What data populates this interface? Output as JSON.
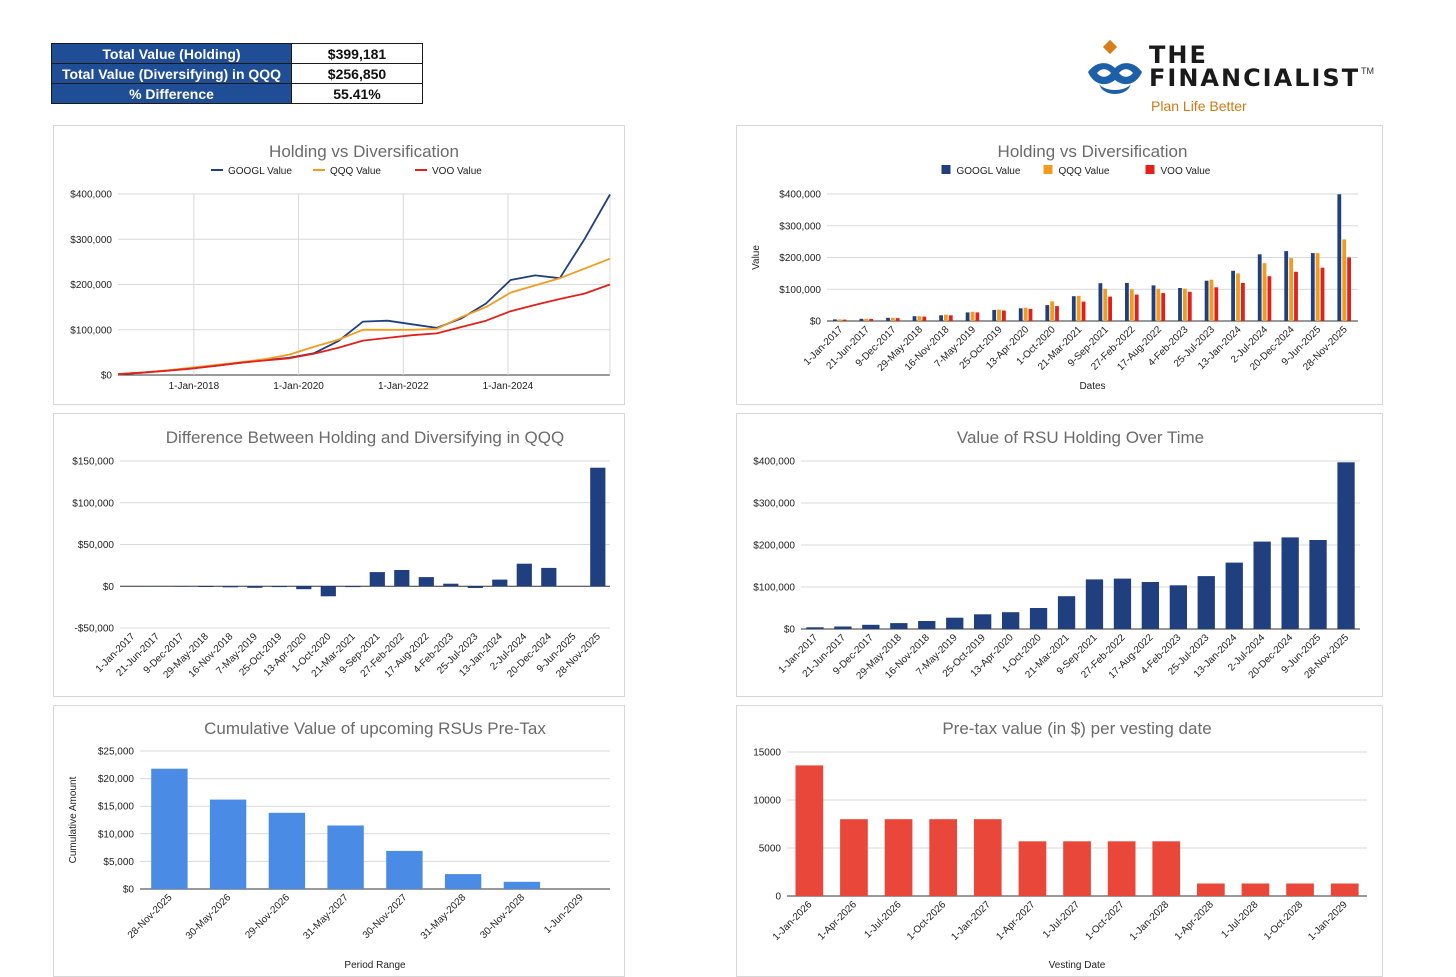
{
  "summary": {
    "rows": [
      {
        "label": "Total Value (Holding)",
        "value": "$399,181"
      },
      {
        "label": "Total Value (Diversifying) in QQQ",
        "value": "$256,850"
      },
      {
        "label": "% Difference",
        "value": "55.41%"
      }
    ]
  },
  "logo": {
    "line1": "THE",
    "line2": "FINANCIALIST",
    "tm": "TM",
    "tagline": "Plan Life Better"
  },
  "colors": {
    "googl": "#1f3f7f",
    "qqq": "#f29c1f",
    "voo": "#e3201b",
    "navy_bar": "#1f3f7f",
    "blue_bar": "#4a8be6",
    "red_bar": "#e8473a",
    "grid": "#d9d9d9"
  },
  "chart_data": [
    {
      "type": "line",
      "title": "Holding vs Diversification",
      "xlabel": "",
      "ylabel": "",
      "legend_position": "top",
      "grid": true,
      "ylim": [
        0,
        400000
      ],
      "yticks": [
        0,
        100000,
        200000,
        300000,
        400000
      ],
      "ytick_labels": [
        "$0",
        "$100,000",
        "$200,000",
        "$300,000",
        "$400,000"
      ],
      "xlim": [
        2016.55,
        2025.95
      ],
      "xticks": [
        2018,
        2020,
        2022,
        2024
      ],
      "xtick_labels": [
        "1-Jan-2018",
        "1-Jan-2020",
        "1-Jan-2022",
        "1-Jan-2024"
      ],
      "x": [
        2016.55,
        2017.0,
        2017.47,
        2017.94,
        2018.41,
        2018.88,
        2019.35,
        2019.82,
        2020.29,
        2020.76,
        2021.23,
        2021.7,
        2022.17,
        2022.64,
        2023.11,
        2023.58,
        2024.05,
        2024.52,
        2024.99,
        2025.46,
        2025.95
      ],
      "series": [
        {
          "name": "GOOGL Value",
          "color": "#1f3f7f",
          "values": [
            2000,
            5000,
            10000,
            15000,
            20000,
            27000,
            33000,
            38000,
            48000,
            75000,
            118000,
            120000,
            112000,
            104000,
            125000,
            158000,
            210000,
            220000,
            214000,
            300000,
            399000
          ]
        },
        {
          "name": "QQQ Value",
          "color": "#f29c1f",
          "values": [
            2000,
            5000,
            10000,
            16000,
            22000,
            28000,
            35000,
            45000,
            62000,
            78000,
            100000,
            100000,
            100000,
            102000,
            128000,
            150000,
            182000,
            198000,
            214000,
            235000,
            257000
          ]
        },
        {
          "name": "VOO Value",
          "color": "#e3201b",
          "values": [
            2000,
            5000,
            9000,
            14000,
            20000,
            27000,
            32000,
            37000,
            47000,
            60000,
            76000,
            82000,
            88000,
            92000,
            106000,
            120000,
            141000,
            155000,
            168000,
            180000,
            200000
          ]
        }
      ]
    },
    {
      "type": "bar",
      "title": "Holding vs Diversification",
      "xlabel": "Dates",
      "ylabel": "Value",
      "legend_position": "top",
      "grid": true,
      "ylim": [
        0,
        400000
      ],
      "yticks": [
        0,
        100000,
        200000,
        300000,
        400000
      ],
      "ytick_labels": [
        "$0",
        "$100,000",
        "$200,000",
        "$300,000",
        "$400,000"
      ],
      "categories": [
        "1-Jan-2017",
        "21-Jun-2017",
        "9-Dec-2017",
        "29-May-2018",
        "16-Nov-2018",
        "7-May-2019",
        "25-Oct-2019",
        "13-Apr-2020",
        "1-Oct-2020",
        "21-Mar-2021",
        "9-Sep-2021",
        "27-Feb-2022",
        "17-Aug-2022",
        "4-Feb-2023",
        "25-Jul-2023",
        "13-Jan-2024",
        "2-Jul-2024",
        "20-Dec-2024",
        "9-Jun-2025",
        "28-Nov-2025"
      ],
      "series": [
        {
          "name": "GOOGL Value",
          "color": "#1f3f7f",
          "values": [
            5000,
            7000,
            10000,
            15000,
            18000,
            27000,
            35000,
            40000,
            50000,
            78000,
            119000,
            120000,
            112000,
            104000,
            127000,
            158000,
            210000,
            220000,
            214000,
            399000
          ]
        },
        {
          "name": "QQQ Value",
          "color": "#f29c1f",
          "values": [
            5000,
            7000,
            10000,
            15000,
            20000,
            29000,
            36000,
            42000,
            62000,
            79000,
            101000,
            100000,
            101000,
            102000,
            130000,
            150000,
            182000,
            198000,
            214000,
            257000
          ]
        },
        {
          "name": "VOO Value",
          "color": "#e3201b",
          "values": [
            4500,
            6500,
            9000,
            14000,
            18000,
            27000,
            33000,
            38000,
            47000,
            61000,
            77000,
            83000,
            88000,
            92000,
            106000,
            120000,
            141000,
            155000,
            168000,
            200000
          ]
        }
      ]
    },
    {
      "type": "bar",
      "title": "Difference Between Holding and Diversifying in QQQ",
      "xlabel": "",
      "ylabel": "",
      "grid": true,
      "ylim": [
        -50000,
        150000
      ],
      "yticks": [
        -50000,
        0,
        50000,
        100000,
        150000
      ],
      "ytick_labels": [
        "-$50,000",
        "$0",
        "$50,000",
        "$100,000",
        "$150,000"
      ],
      "categories": [
        "1-Jan-2017",
        "21-Jun-2017",
        "9-Dec-2017",
        "29-May-2018",
        "16-Nov-2018",
        "7-May-2019",
        "25-Oct-2019",
        "13-Apr-2020",
        "1-Oct-2020",
        "21-Mar-2021",
        "9-Sep-2021",
        "27-Feb-2022",
        "17-Aug-2022",
        "4-Feb-2023",
        "25-Jul-2023",
        "13-Jan-2024",
        "2-Jul-2024",
        "20-Dec-2024",
        "9-Jun-2025",
        "28-Nov-2025"
      ],
      "series": [
        {
          "name": "",
          "color": "#1f3f7f",
          "values": [
            0,
            -200,
            -300,
            -800,
            -1200,
            -1800,
            -1000,
            -3500,
            -12000,
            -1000,
            17000,
            19500,
            11000,
            3000,
            -2000,
            8000,
            27000,
            22000,
            0,
            142000
          ]
        }
      ]
    },
    {
      "type": "bar",
      "title": "Value of RSU Holding Over Time",
      "xlabel": "",
      "ylabel": "",
      "grid": true,
      "ylim": [
        0,
        400000
      ],
      "yticks": [
        0,
        100000,
        200000,
        300000,
        400000
      ],
      "ytick_labels": [
        "$0",
        "$100,000",
        "$200,000",
        "$300,000",
        "$400,000"
      ],
      "categories": [
        "1-Jan-2017",
        "21-Jun-2017",
        "9-Dec-2017",
        "29-May-2018",
        "16-Nov-2018",
        "7-May-2019",
        "25-Oct-2019",
        "13-Apr-2020",
        "1-Oct-2020",
        "21-Mar-2021",
        "9-Sep-2021",
        "27-Feb-2022",
        "17-Aug-2022",
        "4-Feb-2023",
        "25-Jul-2023",
        "13-Jan-2024",
        "2-Jul-2024",
        "20-Dec-2024",
        "9-Jun-2025",
        "28-Nov-2025"
      ],
      "series": [
        {
          "name": "",
          "color": "#1f3f7f",
          "values": [
            4000,
            6000,
            10000,
            14000,
            19000,
            27000,
            35000,
            40000,
            50000,
            78000,
            118000,
            120000,
            112000,
            104000,
            126000,
            158000,
            208000,
            218000,
            212000,
            397000
          ]
        }
      ]
    },
    {
      "type": "bar",
      "title": "Cumulative Value of upcoming RSUs Pre-Tax",
      "xlabel": "Period Range",
      "ylabel": "Cumulative Amount",
      "grid": true,
      "ylim": [
        0,
        25000
      ],
      "yticks": [
        0,
        5000,
        10000,
        15000,
        20000,
        25000
      ],
      "ytick_labels": [
        "$0",
        "$5,000",
        "$10,000",
        "$15,000",
        "$20,000",
        "$25,000"
      ],
      "categories": [
        "28-Nov-2025",
        "30-May-2026",
        "29-Nov-2026",
        "31-May-2027",
        "30-Nov-2027",
        "31-May-2028",
        "30-Nov-2028",
        "1-Jun-2029"
      ],
      "series": [
        {
          "name": "",
          "color": "#4a8be6",
          "values": [
            21800,
            16200,
            13800,
            11500,
            6900,
            2700,
            1300,
            0
          ]
        }
      ]
    },
    {
      "type": "bar",
      "title": "Pre-tax value (in $) per vesting date",
      "xlabel": "Vesting Date",
      "ylabel": "",
      "grid": true,
      "ylim": [
        0,
        15000
      ],
      "yticks": [
        0,
        5000,
        10000,
        15000
      ],
      "ytick_labels": [
        "0",
        "5000",
        "10000",
        "15000"
      ],
      "categories": [
        "1-Jan-2026",
        "1-Apr-2026",
        "1-Jul-2026",
        "1-Oct-2026",
        "1-Jan-2027",
        "1-Apr-2027",
        "1-Jul-2027",
        "1-Oct-2027",
        "1-Jan-2028",
        "1-Apr-2028",
        "1-Jul-2028",
        "1-Oct-2028",
        "1-Jan-2029"
      ],
      "series": [
        {
          "name": "",
          "color": "#e8473a",
          "values": [
            13600,
            8000,
            8000,
            8000,
            8000,
            5700,
            5700,
            5700,
            5700,
            1300,
            1300,
            1300,
            1300
          ]
        }
      ]
    }
  ]
}
